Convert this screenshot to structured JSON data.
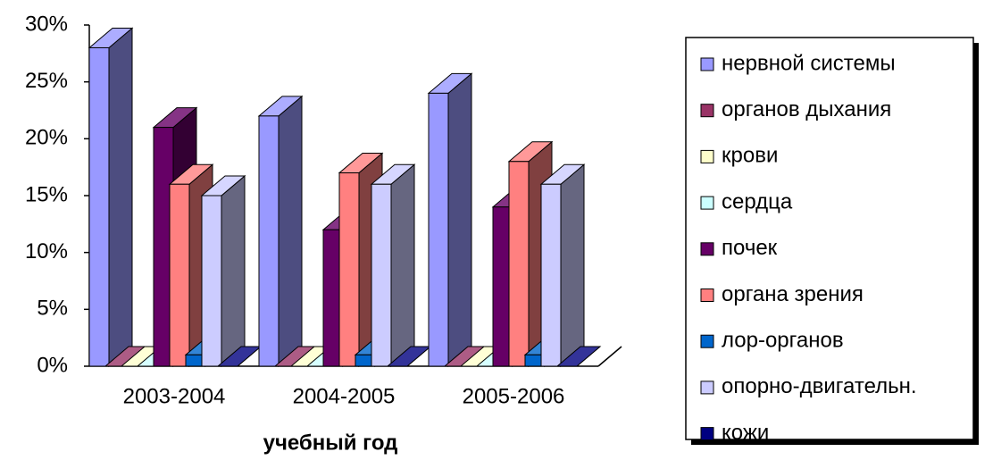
{
  "chart_data": {
    "type": "bar3d",
    "x_axis_label": "учебный год",
    "categories": [
      "2003-2004",
      "2004-2005",
      "2005-2006"
    ],
    "series": [
      {
        "name": "нервной системы",
        "color": "#9999ff",
        "values": [
          28,
          22,
          24
        ]
      },
      {
        "name": "органов дыхания",
        "color": "#993366",
        "values": [
          0,
          0,
          0
        ]
      },
      {
        "name": "крови",
        "color": "#ffffcc",
        "values": [
          0,
          0,
          0
        ]
      },
      {
        "name": "сердца",
        "color": "#ccffff",
        "values": [
          0,
          0,
          0
        ]
      },
      {
        "name": "почек",
        "color": "#660066",
        "values": [
          21,
          12,
          14
        ]
      },
      {
        "name": "органа зрения",
        "color": "#ff8080",
        "values": [
          16,
          17,
          18
        ]
      },
      {
        "name": "лор-органов",
        "color": "#0066cc",
        "values": [
          1,
          1,
          1
        ]
      },
      {
        "name": "опорно-двигательн.",
        "color": "#ccccff",
        "values": [
          15,
          16,
          16
        ]
      },
      {
        "name": "кожи",
        "color": "#000080",
        "values": [
          0,
          0,
          0
        ]
      }
    ],
    "ylim": [
      0,
      30
    ],
    "yticks": [
      {
        "value": 0,
        "label": "0%"
      },
      {
        "value": 5,
        "label": "5%"
      },
      {
        "value": 10,
        "label": "10%"
      },
      {
        "value": 15,
        "label": "15%"
      },
      {
        "value": 20,
        "label": "20%"
      },
      {
        "value": 25,
        "label": "25%"
      },
      {
        "value": 30,
        "label": "30%"
      }
    ],
    "legend": "right"
  }
}
